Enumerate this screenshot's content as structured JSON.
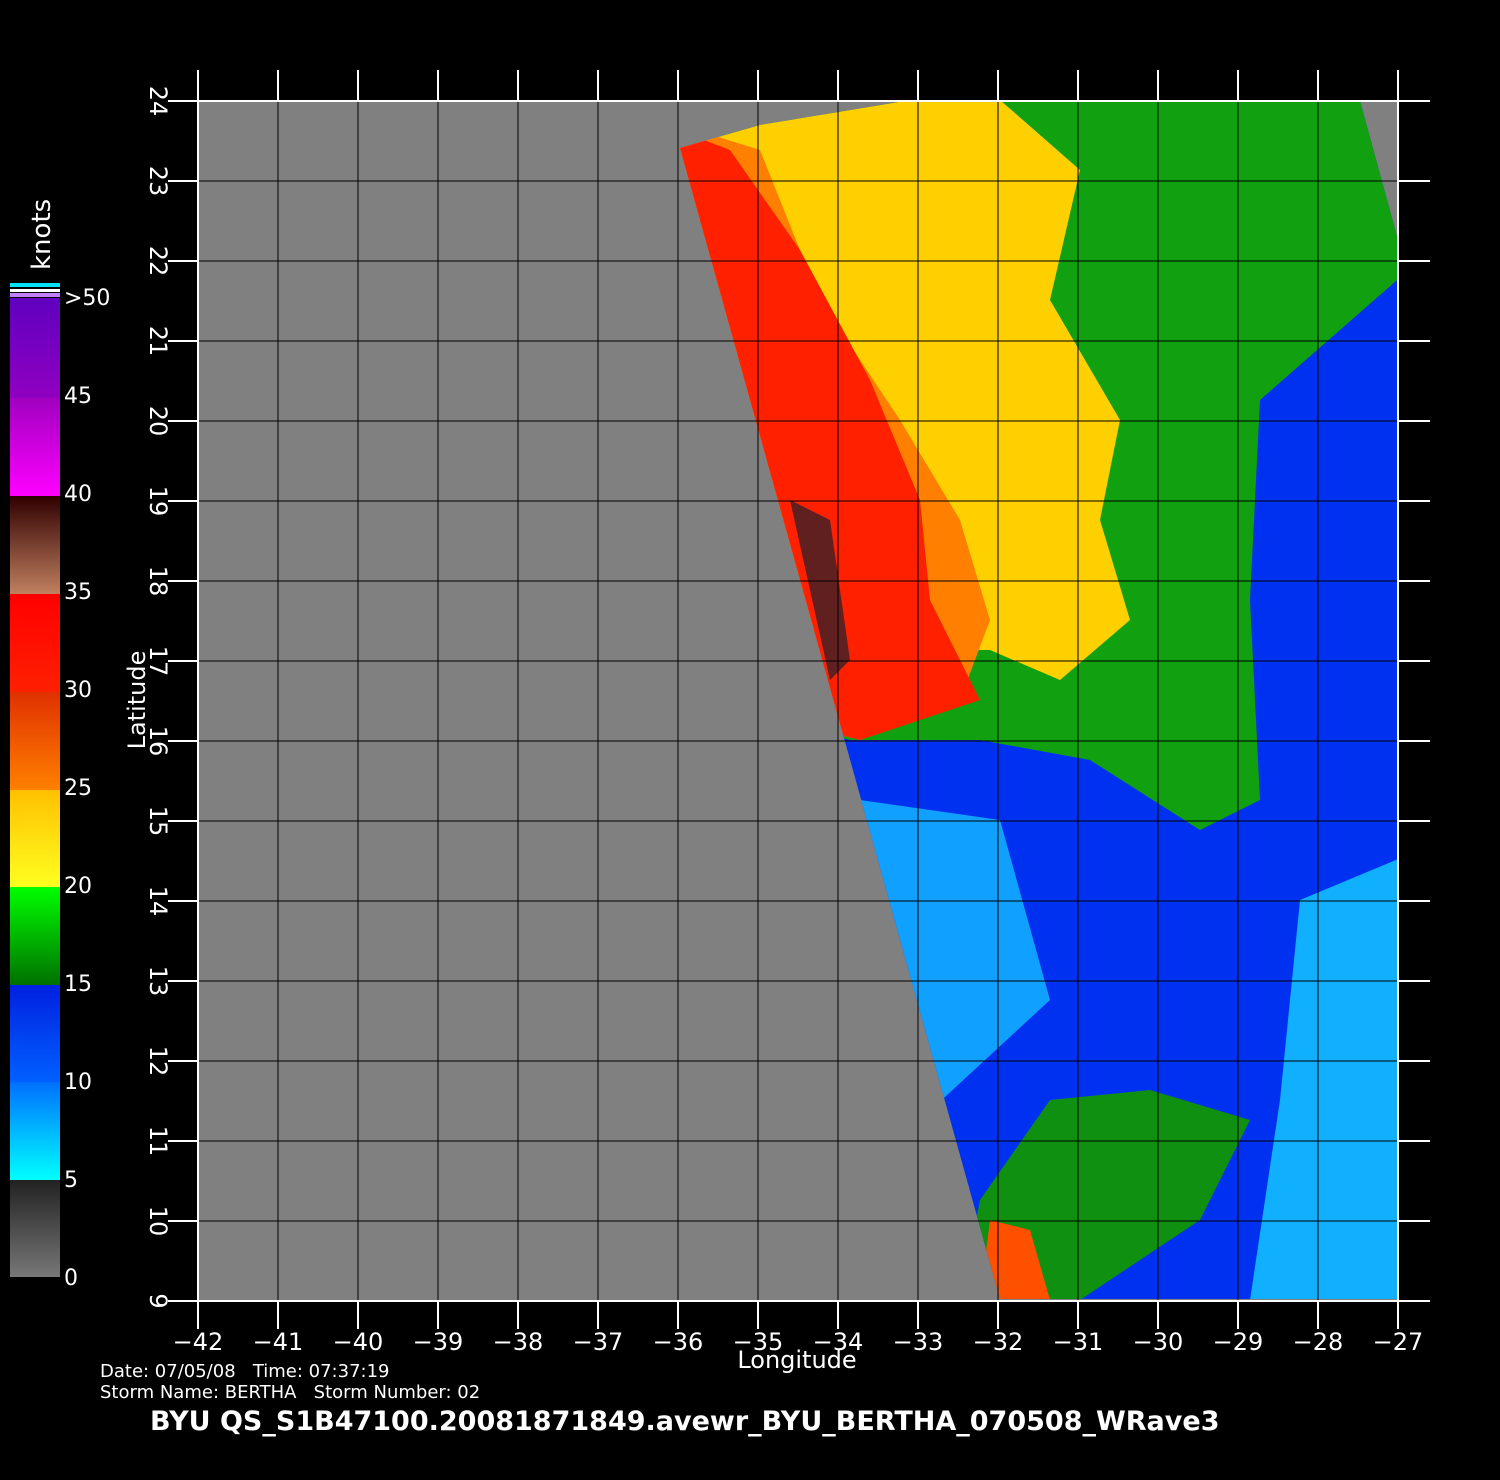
{
  "colorbar": {
    "title": "knots",
    "labels": [
      "0",
      "5",
      "10",
      "15",
      "20",
      "25",
      "30",
      "35",
      "40",
      "45",
      ">50"
    ]
  },
  "axes": {
    "x_label": "Longitude",
    "y_label": "Latitude",
    "x_ticks": [
      "−42",
      "−41",
      "−40",
      "−39",
      "−38",
      "−37",
      "−36",
      "−35",
      "−34",
      "−33",
      "−32",
      "−31",
      "−30",
      "−29",
      "−28",
      "−27"
    ],
    "y_ticks": [
      "9",
      "10",
      "11",
      "12",
      "13",
      "14",
      "15",
      "16",
      "17",
      "18",
      "19",
      "20",
      "21",
      "22",
      "23",
      "24"
    ]
  },
  "info": {
    "date_line": "Date: 07/05/08   Time: 07:37:19",
    "storm_line": "Storm Name: BERTHA   Storm Number: 02"
  },
  "footer": "BYU QS_S1B47100.20081871849.avewr_BYU_BERTHA_070508_WRave3"
}
